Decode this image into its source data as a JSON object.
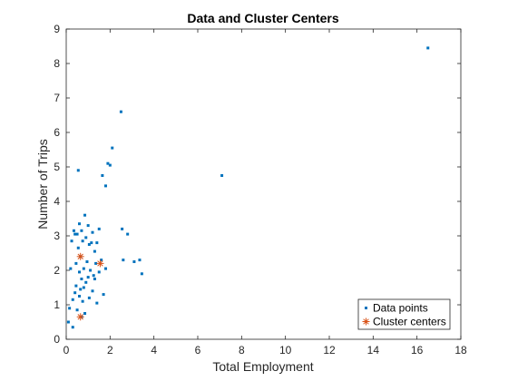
{
  "chart_data": {
    "type": "scatter",
    "title": "Data and Cluster Centers",
    "xlabel": "Total Employment",
    "ylabel": "Number of Trips",
    "xlim": [
      0,
      18
    ],
    "ylim": [
      0,
      9
    ],
    "xticks": [
      "0",
      "2",
      "4",
      "6",
      "8",
      "10",
      "12",
      "14",
      "16",
      "18"
    ],
    "yticks": [
      "0",
      "1",
      "2",
      "3",
      "4",
      "5",
      "6",
      "7",
      "8",
      "9"
    ],
    "grid": false,
    "legend_position": "bottom-right",
    "series": [
      {
        "name": "Data points",
        "marker": "point",
        "color": "#0072BD",
        "points": [
          [
            0.1,
            0.5
          ],
          [
            0.15,
            0.9
          ],
          [
            0.2,
            2.05
          ],
          [
            0.25,
            2.85
          ],
          [
            0.3,
            0.35
          ],
          [
            0.3,
            1.15
          ],
          [
            0.35,
            3.15
          ],
          [
            0.4,
            1.35
          ],
          [
            0.4,
            3.05
          ],
          [
            0.45,
            1.55
          ],
          [
            0.45,
            2.2
          ],
          [
            0.5,
            0.85
          ],
          [
            0.5,
            3.05
          ],
          [
            0.55,
            2.65
          ],
          [
            0.55,
            4.9
          ],
          [
            0.6,
            1.25
          ],
          [
            0.6,
            1.95
          ],
          [
            0.6,
            3.35
          ],
          [
            0.65,
            1.45
          ],
          [
            0.65,
            2.4
          ],
          [
            0.7,
            0.65
          ],
          [
            0.7,
            1.75
          ],
          [
            0.7,
            3.15
          ],
          [
            0.75,
            1.1
          ],
          [
            0.75,
            2.85
          ],
          [
            0.8,
            1.5
          ],
          [
            0.8,
            2.05
          ],
          [
            0.85,
            0.75
          ],
          [
            0.85,
            3.6
          ],
          [
            0.9,
            1.65
          ],
          [
            0.9,
            2.95
          ],
          [
            0.95,
            2.25
          ],
          [
            1.0,
            1.8
          ],
          [
            1.0,
            3.3
          ],
          [
            1.05,
            1.2
          ],
          [
            1.05,
            2.75
          ],
          [
            1.1,
            2.0
          ],
          [
            1.15,
            2.8
          ],
          [
            1.2,
            1.4
          ],
          [
            1.2,
            3.1
          ],
          [
            1.25,
            1.85
          ],
          [
            1.3,
            1.75
          ],
          [
            1.3,
            2.55
          ],
          [
            1.35,
            2.2
          ],
          [
            1.4,
            1.05
          ],
          [
            1.4,
            2.8
          ],
          [
            1.5,
            1.95
          ],
          [
            1.5,
            3.2
          ],
          [
            1.6,
            2.3
          ],
          [
            1.65,
            4.75
          ],
          [
            1.7,
            1.3
          ],
          [
            1.8,
            2.05
          ],
          [
            1.8,
            4.45
          ],
          [
            1.9,
            5.1
          ],
          [
            2.0,
            5.05
          ],
          [
            2.1,
            5.55
          ],
          [
            2.5,
            6.6
          ],
          [
            2.55,
            3.2
          ],
          [
            2.6,
            2.3
          ],
          [
            2.8,
            3.05
          ],
          [
            3.1,
            2.25
          ],
          [
            3.35,
            2.3
          ],
          [
            3.45,
            1.9
          ],
          [
            7.1,
            4.75
          ],
          [
            16.5,
            8.45
          ]
        ]
      },
      {
        "name": "Cluster centers",
        "marker": "asterisk",
        "color": "#D95319",
        "points": [
          [
            0.65,
            2.4
          ],
          [
            1.55,
            2.2
          ],
          [
            0.65,
            0.65
          ]
        ]
      }
    ]
  }
}
